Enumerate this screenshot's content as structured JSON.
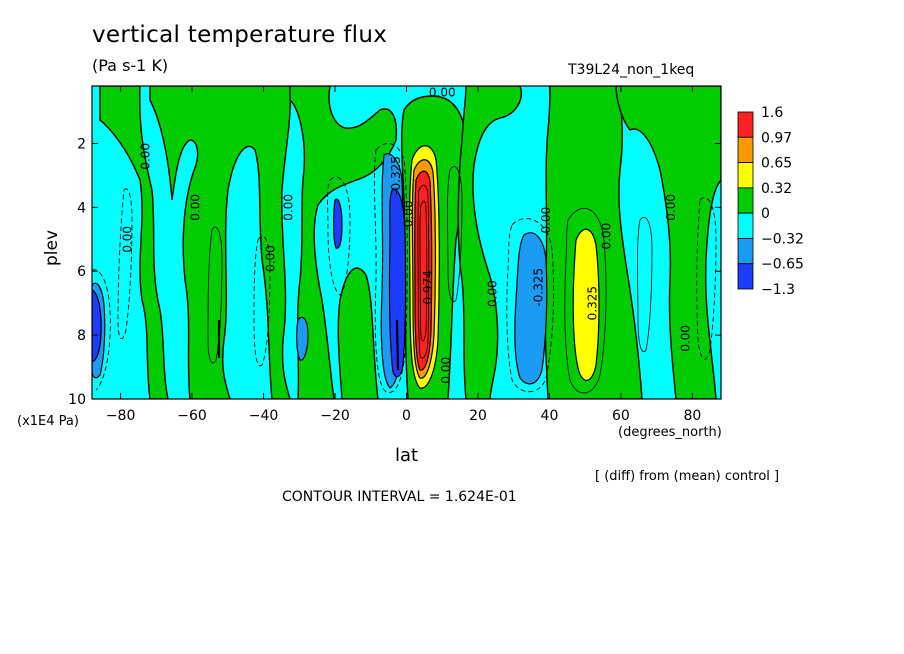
{
  "chart_data": {
    "type": "heatmap",
    "title": "vertical temperature flux",
    "units": "(Pa s-1 K)",
    "run_name": "T39L24_non_1keq",
    "xlabel": "lat",
    "xunit": "(degrees_north)",
    "ylabel": "plev",
    "yunit": "(x1E4 Pa)",
    "xlim": [
      -88,
      88
    ],
    "ylim": [
      10,
      0.2
    ],
    "x_ticks": [
      -80,
      -60,
      -40,
      -20,
      0,
      20,
      40,
      60,
      80
    ],
    "x_tick_labels": [
      "−80",
      "−60",
      "−40",
      "−20",
      "0",
      "20",
      "40",
      "60",
      "80"
    ],
    "y_ticks": [
      2,
      4,
      6,
      8,
      10
    ],
    "y_tick_labels": [
      "2",
      "4",
      "6",
      "8",
      "10"
    ],
    "colorbar": {
      "labels": [
        "1.6",
        "0.97",
        "0.65",
        "0.32",
        "0",
        "−0.32",
        "−0.65",
        "−1.3"
      ],
      "colors": [
        "#ff2020",
        "#ff9900",
        "#ffff00",
        "#00cc00",
        "#00ffff",
        "#1a9cf5",
        "#1e3cff"
      ]
    },
    "contour_labels": [
      {
        "text": "0.00",
        "lon": 10,
        "lev": 0.4,
        "rot": 0
      },
      {
        "text": "0.00",
        "lon": -73,
        "lev": 2.4,
        "rot": -90
      },
      {
        "text": "0.00",
        "lon": -78,
        "lev": 5.0,
        "rot": -90
      },
      {
        "text": "0.00",
        "lon": -59,
        "lev": 4.0,
        "rot": -90
      },
      {
        "text": "0.00",
        "lon": -38,
        "lev": 5.6,
        "rot": -90
      },
      {
        "text": "0.00",
        "lon": -33,
        "lev": 4.0,
        "rot": -90
      },
      {
        "text": "-0.325",
        "lon": -3,
        "lev": 3.0,
        "rot": -90
      },
      {
        "text": "0.00",
        "lon": 0.5,
        "lev": 4.2,
        "rot": -90
      },
      {
        "text": "0.974",
        "lon": 6,
        "lev": 6.5,
        "rot": -90
      },
      {
        "text": "0.00",
        "lon": 11,
        "lev": 9.1,
        "rot": -90
      },
      {
        "text": "0.00",
        "lon": 24,
        "lev": 6.7,
        "rot": -90
      },
      {
        "text": "0.00",
        "lon": 39,
        "lev": 4.4,
        "rot": -90
      },
      {
        "text": "-0.325",
        "lon": 37,
        "lev": 6.5,
        "rot": -90
      },
      {
        "text": "0.325",
        "lon": 52,
        "lev": 7.0,
        "rot": -90
      },
      {
        "text": "0.00",
        "lon": 56,
        "lev": 4.9,
        "rot": -90
      },
      {
        "text": "0.00",
        "lon": 74,
        "lev": 4.0,
        "rot": -90
      },
      {
        "text": "0.00",
        "lon": 78,
        "lev": 8.1,
        "rot": -90
      }
    ],
    "features": [
      {
        "sign": "positive",
        "peak": 1.6,
        "lon": 5,
        "lev_range": [
          2.5,
          9.7
        ]
      },
      {
        "sign": "negative",
        "peak": -1.3,
        "lon": -1,
        "lev_range": [
          3.0,
          9.5
        ]
      },
      {
        "sign": "positive",
        "peak": 0.65,
        "lon": 51,
        "lev_range": [
          4.0,
          9.3
        ]
      },
      {
        "sign": "negative",
        "peak": -0.65,
        "lon": 33,
        "lev_range": [
          4.5,
          9.6
        ]
      },
      {
        "sign": "negative",
        "peak": -0.65,
        "lon": -86,
        "lev_range": [
          6.0,
          9.0
        ]
      }
    ],
    "grid": false,
    "legend_placement": "right"
  },
  "footer": {
    "diff_note": "[ (diff) from (mean) control ]",
    "contour_interval": "CONTOUR INTERVAL = 1.624E-01"
  }
}
